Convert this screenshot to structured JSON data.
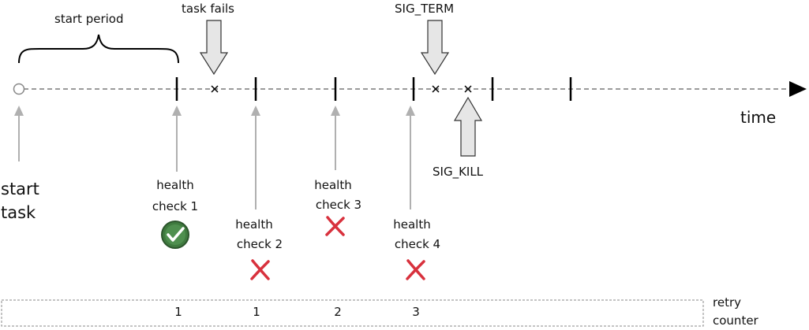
{
  "labels": {
    "start_period": "start period",
    "task_fails": "task fails",
    "sig_term": "SIG_TERM",
    "sig_kill": "SIG_KILL",
    "time": "time",
    "start_task_line1": "start",
    "start_task_line2": "task",
    "retry_counter_line1": "retry",
    "retry_counter_line2": "counter"
  },
  "health_checks": [
    {
      "line1": "health",
      "line2": "check 1",
      "result": "pass"
    },
    {
      "line1": "health",
      "line2": "check 2",
      "result": "fail"
    },
    {
      "line1": "health",
      "line2": "check 3",
      "result": "fail"
    },
    {
      "line1": "health",
      "line2": "check 4",
      "result": "fail"
    }
  ],
  "retry_counter_values": [
    "1",
    "1",
    "2",
    "3"
  ],
  "colors": {
    "timeline": "#9a9a9a",
    "arrow_fill": "#e6e6e6",
    "arrow_stroke": "#333333",
    "pass_green": "#3f7a3f",
    "fail_red": "#d8313d"
  }
}
